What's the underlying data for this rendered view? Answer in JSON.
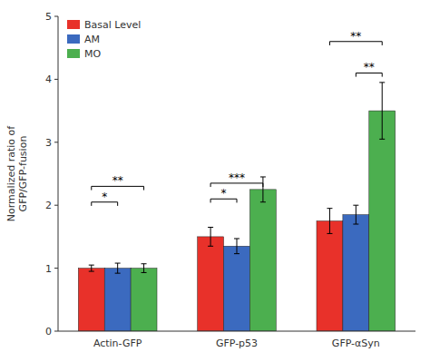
{
  "chart_data": {
    "type": "bar",
    "categories": [
      "Actin-GFP",
      "GFP-p53",
      "GFP-αSyn"
    ],
    "series": [
      {
        "name": "Basal Level",
        "color": "#e8312a",
        "values": [
          1.0,
          1.5,
          1.75
        ],
        "errors": [
          0.05,
          0.15,
          0.2
        ]
      },
      {
        "name": "AM",
        "color": "#3b6abf",
        "values": [
          1.0,
          1.35,
          1.85
        ],
        "errors": [
          0.08,
          0.12,
          0.15
        ]
      },
      {
        "name": "MO",
        "color": "#4caf4f",
        "values": [
          1.0,
          2.25,
          3.5
        ],
        "errors": [
          0.07,
          0.2,
          0.45
        ]
      }
    ],
    "ylabel": "Normalized ratio of\nGFP/GFP-fusion",
    "ylim": [
      0,
      5
    ],
    "yticks": [
      0,
      1,
      2,
      3,
      4,
      5
    ],
    "grid": false,
    "legend": "upper left",
    "annotations": [
      {
        "category": "Actin-GFP",
        "from": "Basal Level",
        "to": "AM",
        "y": 2.05,
        "text": "*"
      },
      {
        "category": "Actin-GFP",
        "from": "Basal Level",
        "to": "MO",
        "y": 2.3,
        "text": "**"
      },
      {
        "category": "GFP-p53",
        "from": "Basal Level",
        "to": "AM",
        "y": 2.1,
        "text": "*"
      },
      {
        "category": "GFP-p53",
        "from": "Basal Level",
        "to": "MO",
        "y": 2.35,
        "text": "***"
      },
      {
        "category": "GFP-αSyn",
        "from": "AM",
        "to": "MO",
        "y": 4.1,
        "text": "**"
      },
      {
        "category": "GFP-αSyn",
        "from": "Basal Level",
        "to": "MO",
        "y": 4.6,
        "text": "**"
      }
    ]
  }
}
